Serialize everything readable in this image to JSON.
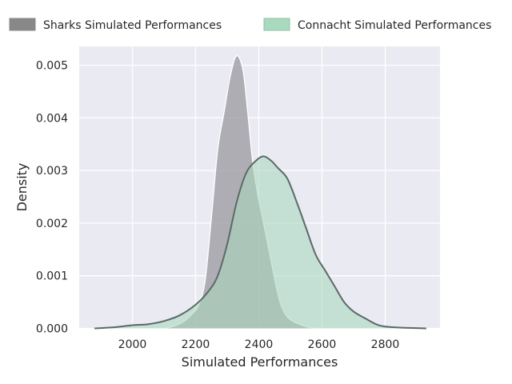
{
  "chart_data": {
    "type": "area",
    "xlabel": "Simulated Performances",
    "ylabel": "Density",
    "xlim": [
      1850,
      2950
    ],
    "ylim": [
      0,
      0.0054
    ],
    "x_ticks": [
      2000,
      2200,
      2400,
      2600,
      2800
    ],
    "y_ticks": [
      0.0,
      0.001,
      0.002,
      0.003,
      0.004,
      0.005
    ],
    "x_tick_labels": [
      "2000",
      "2200",
      "2400",
      "2600",
      "2800"
    ],
    "y_tick_labels": [
      "0.000",
      "0.001",
      "0.002",
      "0.003",
      "0.004",
      "0.005"
    ],
    "grid": true,
    "legend_position": "top",
    "series": [
      {
        "name": "Sharks Simulated Performances",
        "fill": "#9e9ba3",
        "legend_color": "#888888",
        "stroke": "#ffffff",
        "points": [
          [
            2100,
            0.0
          ],
          [
            2130,
            4e-05
          ],
          [
            2160,
            0.00012
          ],
          [
            2190,
            0.00028
          ],
          [
            2210,
            0.00045
          ],
          [
            2230,
            0.0009
          ],
          [
            2250,
            0.0021
          ],
          [
            2270,
            0.0034
          ],
          [
            2290,
            0.0041
          ],
          [
            2310,
            0.0048
          ],
          [
            2330,
            0.00518
          ],
          [
            2350,
            0.0049
          ],
          [
            2365,
            0.0041
          ],
          [
            2380,
            0.0032
          ],
          [
            2395,
            0.0026
          ],
          [
            2410,
            0.00215
          ],
          [
            2425,
            0.0017
          ],
          [
            2440,
            0.00125
          ],
          [
            2455,
            0.0008
          ],
          [
            2470,
            0.00045
          ],
          [
            2490,
            0.00022
          ],
          [
            2520,
            0.0001
          ],
          [
            2560,
            2e-05
          ],
          [
            2600,
            0.0
          ]
        ]
      },
      {
        "name": "Connacht Simulated Performances",
        "fill": "#a8d8be",
        "legend_color": "#a9d9bf",
        "stroke": "#5c6966",
        "points": [
          [
            1880,
            0.0
          ],
          [
            1940,
            2e-05
          ],
          [
            2000,
            6e-05
          ],
          [
            2050,
            8e-05
          ],
          [
            2100,
            0.00014
          ],
          [
            2150,
            0.00025
          ],
          [
            2200,
            0.00045
          ],
          [
            2240,
            0.0007
          ],
          [
            2270,
            0.001
          ],
          [
            2300,
            0.0016
          ],
          [
            2330,
            0.0024
          ],
          [
            2360,
            0.00295
          ],
          [
            2390,
            0.00318
          ],
          [
            2415,
            0.00327
          ],
          [
            2440,
            0.00318
          ],
          [
            2460,
            0.00305
          ],
          [
            2490,
            0.00285
          ],
          [
            2520,
            0.0024
          ],
          [
            2550,
            0.0019
          ],
          [
            2580,
            0.0014
          ],
          [
            2610,
            0.0011
          ],
          [
            2640,
            0.0008
          ],
          [
            2670,
            0.0005
          ],
          [
            2700,
            0.00032
          ],
          [
            2740,
            0.00018
          ],
          [
            2780,
            6e-05
          ],
          [
            2830,
            2e-05
          ],
          [
            2930,
            0.0
          ]
        ]
      }
    ]
  }
}
